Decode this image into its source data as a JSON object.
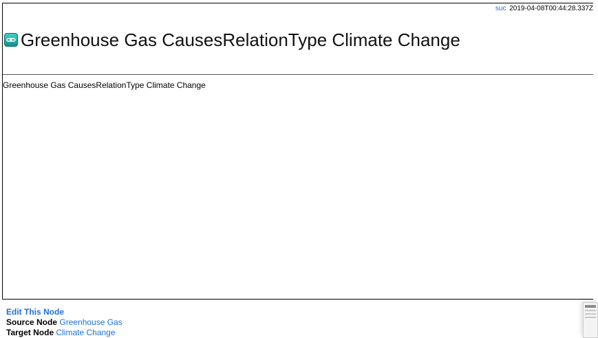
{
  "meta": {
    "user": "suc",
    "timestamp": "2019-04-08T00:44:28.337Z"
  },
  "node": {
    "icon": "link-icon",
    "title": "Greenhouse Gas CausesRelationType Climate Change",
    "body": "Greenhouse Gas CausesRelationType Climate Change"
  },
  "footer": {
    "edit_label": "Edit This Node",
    "source_label": "Source Node",
    "source_value": "Greenhouse Gas",
    "target_label": "Target Node",
    "target_value": "Climate Change"
  },
  "colors": {
    "link": "#1e6fd9",
    "icon": "#1fa8a2"
  }
}
